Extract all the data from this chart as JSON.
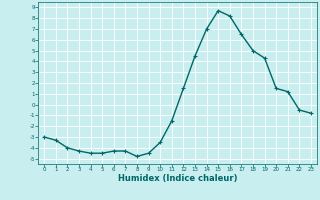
{
  "x": [
    0,
    1,
    2,
    3,
    4,
    5,
    6,
    7,
    8,
    9,
    10,
    11,
    12,
    13,
    14,
    15,
    16,
    17,
    18,
    19,
    20,
    21,
    22,
    23
  ],
  "y": [
    -3.0,
    -3.3,
    -4.0,
    -4.3,
    -4.5,
    -4.5,
    -4.3,
    -4.3,
    -4.8,
    -4.5,
    -3.5,
    -1.5,
    1.5,
    4.5,
    7.0,
    8.7,
    8.2,
    6.5,
    5.0,
    4.3,
    1.5,
    1.2,
    -0.5,
    -0.8
  ],
  "line_color": "#006666",
  "marker": "+",
  "markersize": 3,
  "linewidth": 1.0,
  "xlabel": "Humidex (Indice chaleur)",
  "xlabel_fontsize": 6,
  "bg_color": "#c8eef0",
  "grid_color": "#ffffff",
  "tick_color": "#006666",
  "label_color": "#006666",
  "xlim": [
    -0.5,
    23.5
  ],
  "ylim": [
    -5.5,
    9.5
  ],
  "yticks": [
    -5,
    -4,
    -3,
    -2,
    -1,
    0,
    1,
    2,
    3,
    4,
    5,
    6,
    7,
    8,
    9
  ],
  "xticks": [
    0,
    1,
    2,
    3,
    4,
    5,
    6,
    7,
    8,
    9,
    10,
    11,
    12,
    13,
    14,
    15,
    16,
    17,
    18,
    19,
    20,
    21,
    22,
    23
  ]
}
